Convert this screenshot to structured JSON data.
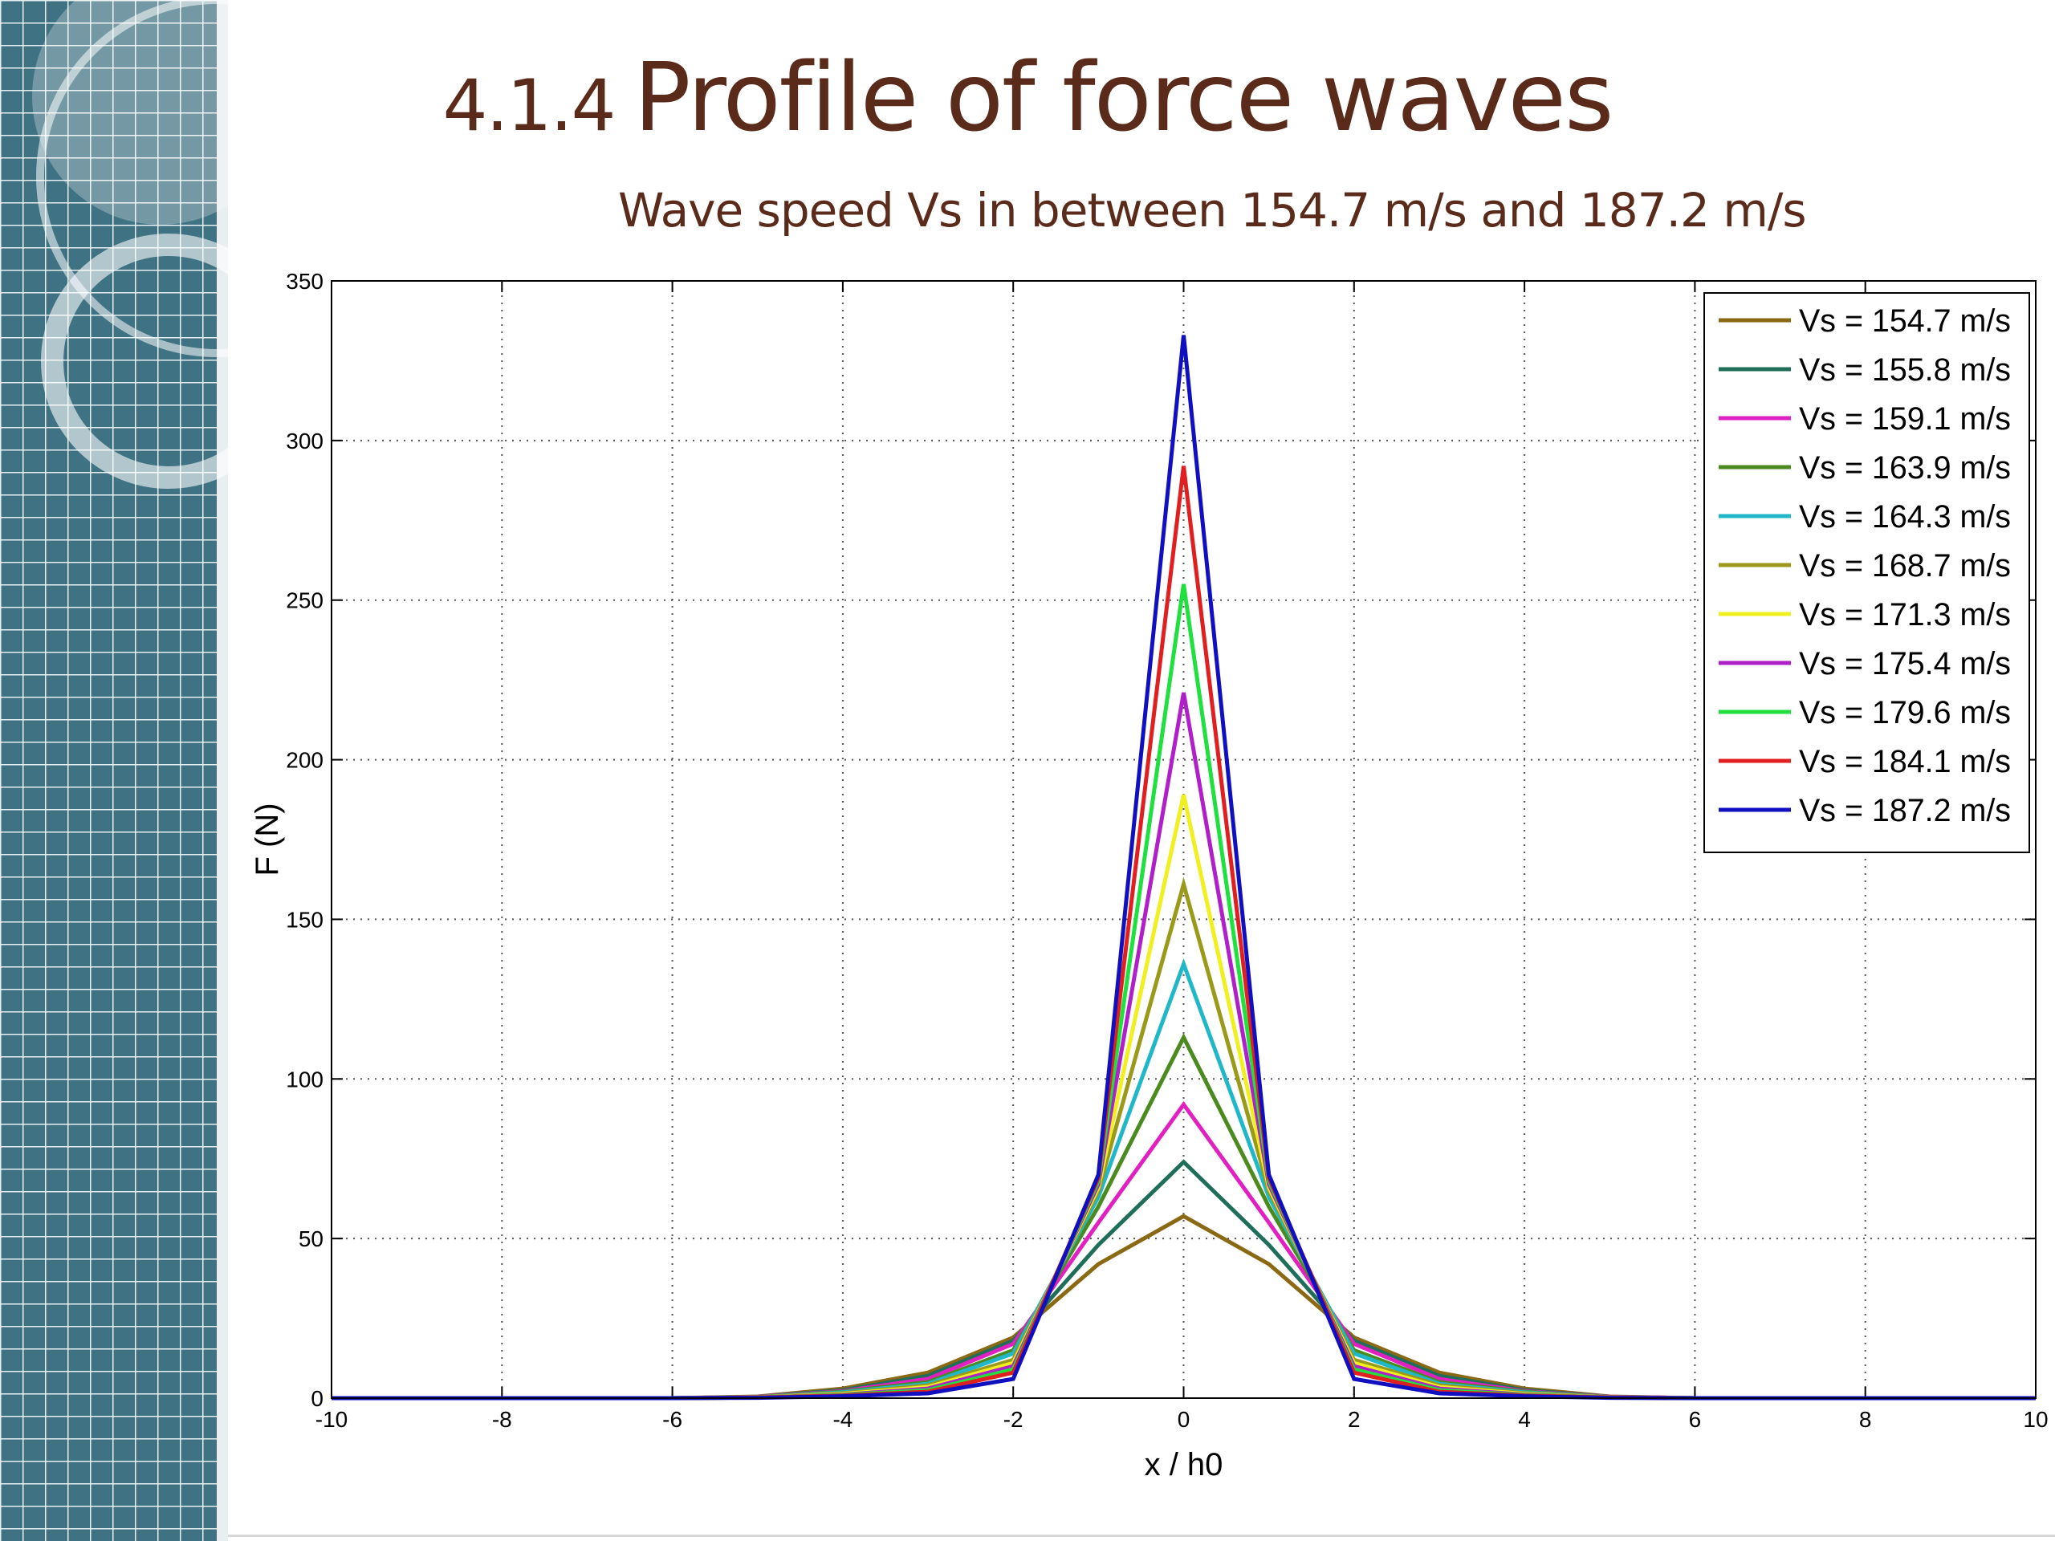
{
  "slide": {
    "title_number": "4.1.4",
    "title_text": "Profile of force waves",
    "subtitle": "Wave speed Vs in between 154.7 m/s and 187.2 m/s"
  },
  "colors": {
    "title": "#5a2a1a",
    "sidebar_bg": "#3f7283",
    "sidebar_grid": "#e8f0f2"
  },
  "chart_data": {
    "type": "line",
    "title": "",
    "xlabel": "x / h0",
    "ylabel": "F (N)",
    "xlim": [
      -10,
      10
    ],
    "ylim": [
      0,
      350
    ],
    "xticks": [
      -10,
      -8,
      -6,
      -4,
      -2,
      0,
      2,
      4,
      6,
      8,
      10
    ],
    "yticks": [
      0,
      50,
      100,
      150,
      200,
      250,
      300,
      350
    ],
    "xtick_labels": [
      "-10",
      "-8",
      "-6",
      "-4",
      "-2",
      "0",
      "2",
      "4",
      "6",
      "8",
      "10"
    ],
    "ytick_labels": [
      "0",
      "50",
      "100",
      "150",
      "200",
      "250",
      "300",
      "350"
    ],
    "grid": true,
    "legend_position": "top-right",
    "x": [
      -10,
      -9,
      -8,
      -7,
      -6,
      -5,
      -4,
      -3,
      -2,
      -1,
      0,
      1,
      2,
      3,
      4,
      5,
      6,
      7,
      8,
      9,
      10
    ],
    "series": [
      {
        "name": "Vs = 154.7 m/s",
        "color": "#8b6914",
        "values": [
          0,
          0,
          0,
          0,
          0,
          0.5,
          3,
          8,
          19,
          42,
          57,
          42,
          19,
          8,
          3,
          0.5,
          0,
          0,
          0,
          0,
          0
        ]
      },
      {
        "name": "Vs = 155.8 m/s",
        "color": "#1f6e5a",
        "values": [
          0,
          0,
          0,
          0,
          0,
          0.4,
          2.5,
          7,
          18,
          48,
          74,
          48,
          18,
          7,
          2.5,
          0.4,
          0,
          0,
          0,
          0,
          0
        ]
      },
      {
        "name": "Vs = 159.1 m/s",
        "color": "#e020c0",
        "values": [
          0,
          0,
          0,
          0,
          0,
          0.4,
          2.2,
          6,
          17,
          55,
          92,
          55,
          17,
          6,
          2.2,
          0.4,
          0,
          0,
          0,
          0,
          0
        ]
      },
      {
        "name": "Vs = 163.9 m/s",
        "color": "#4b8a1e",
        "values": [
          0,
          0,
          0,
          0,
          0,
          0.3,
          2,
          5,
          15,
          60,
          113,
          60,
          15,
          5,
          2,
          0.3,
          0,
          0,
          0,
          0,
          0
        ]
      },
      {
        "name": "Vs = 164.3 m/s",
        "color": "#20b8c8",
        "values": [
          0,
          0,
          0,
          0,
          0,
          0.3,
          1.8,
          4.5,
          14,
          63,
          136,
          63,
          14,
          4.5,
          1.8,
          0.3,
          0,
          0,
          0,
          0,
          0
        ]
      },
      {
        "name": "Vs = 168.7 m/s",
        "color": "#9a9a1a",
        "values": [
          0,
          0,
          0,
          0,
          0,
          0.3,
          1.5,
          4,
          12,
          65,
          161,
          65,
          12,
          4,
          1.5,
          0.3,
          0,
          0,
          0,
          0,
          0
        ]
      },
      {
        "name": "Vs = 171.3 m/s",
        "color": "#f0f020",
        "values": [
          0,
          0,
          0,
          0,
          0,
          0.2,
          1.3,
          3.5,
          11,
          66,
          189,
          66,
          11,
          3.5,
          1.3,
          0.2,
          0,
          0,
          0,
          0,
          0
        ]
      },
      {
        "name": "Vs = 175.4 m/s",
        "color": "#b020c8",
        "values": [
          0,
          0,
          0,
          0,
          0,
          0.2,
          1.1,
          3,
          10,
          67,
          221,
          67,
          10,
          3,
          1.1,
          0.2,
          0,
          0,
          0,
          0,
          0
        ]
      },
      {
        "name": "Vs = 179.6 m/s",
        "color": "#20e040",
        "values": [
          0,
          0,
          0,
          0,
          0,
          0.2,
          1,
          2.5,
          9,
          68,
          255,
          68,
          9,
          2.5,
          1,
          0.2,
          0,
          0,
          0,
          0,
          0
        ]
      },
      {
        "name": "Vs = 184.1 m/s",
        "color": "#e02020",
        "values": [
          0,
          0,
          0,
          0,
          0,
          0.2,
          0.8,
          2,
          8,
          69,
          292,
          69,
          8,
          2,
          0.8,
          0.2,
          0,
          0,
          0,
          0,
          0
        ]
      },
      {
        "name": "Vs = 187.2 m/s",
        "color": "#1010c0",
        "values": [
          0,
          0,
          0,
          0,
          0,
          0.1,
          0.6,
          1.5,
          6,
          70,
          333,
          70,
          6,
          1.5,
          0.6,
          0.1,
          0,
          0,
          0,
          0,
          0
        ]
      }
    ]
  }
}
